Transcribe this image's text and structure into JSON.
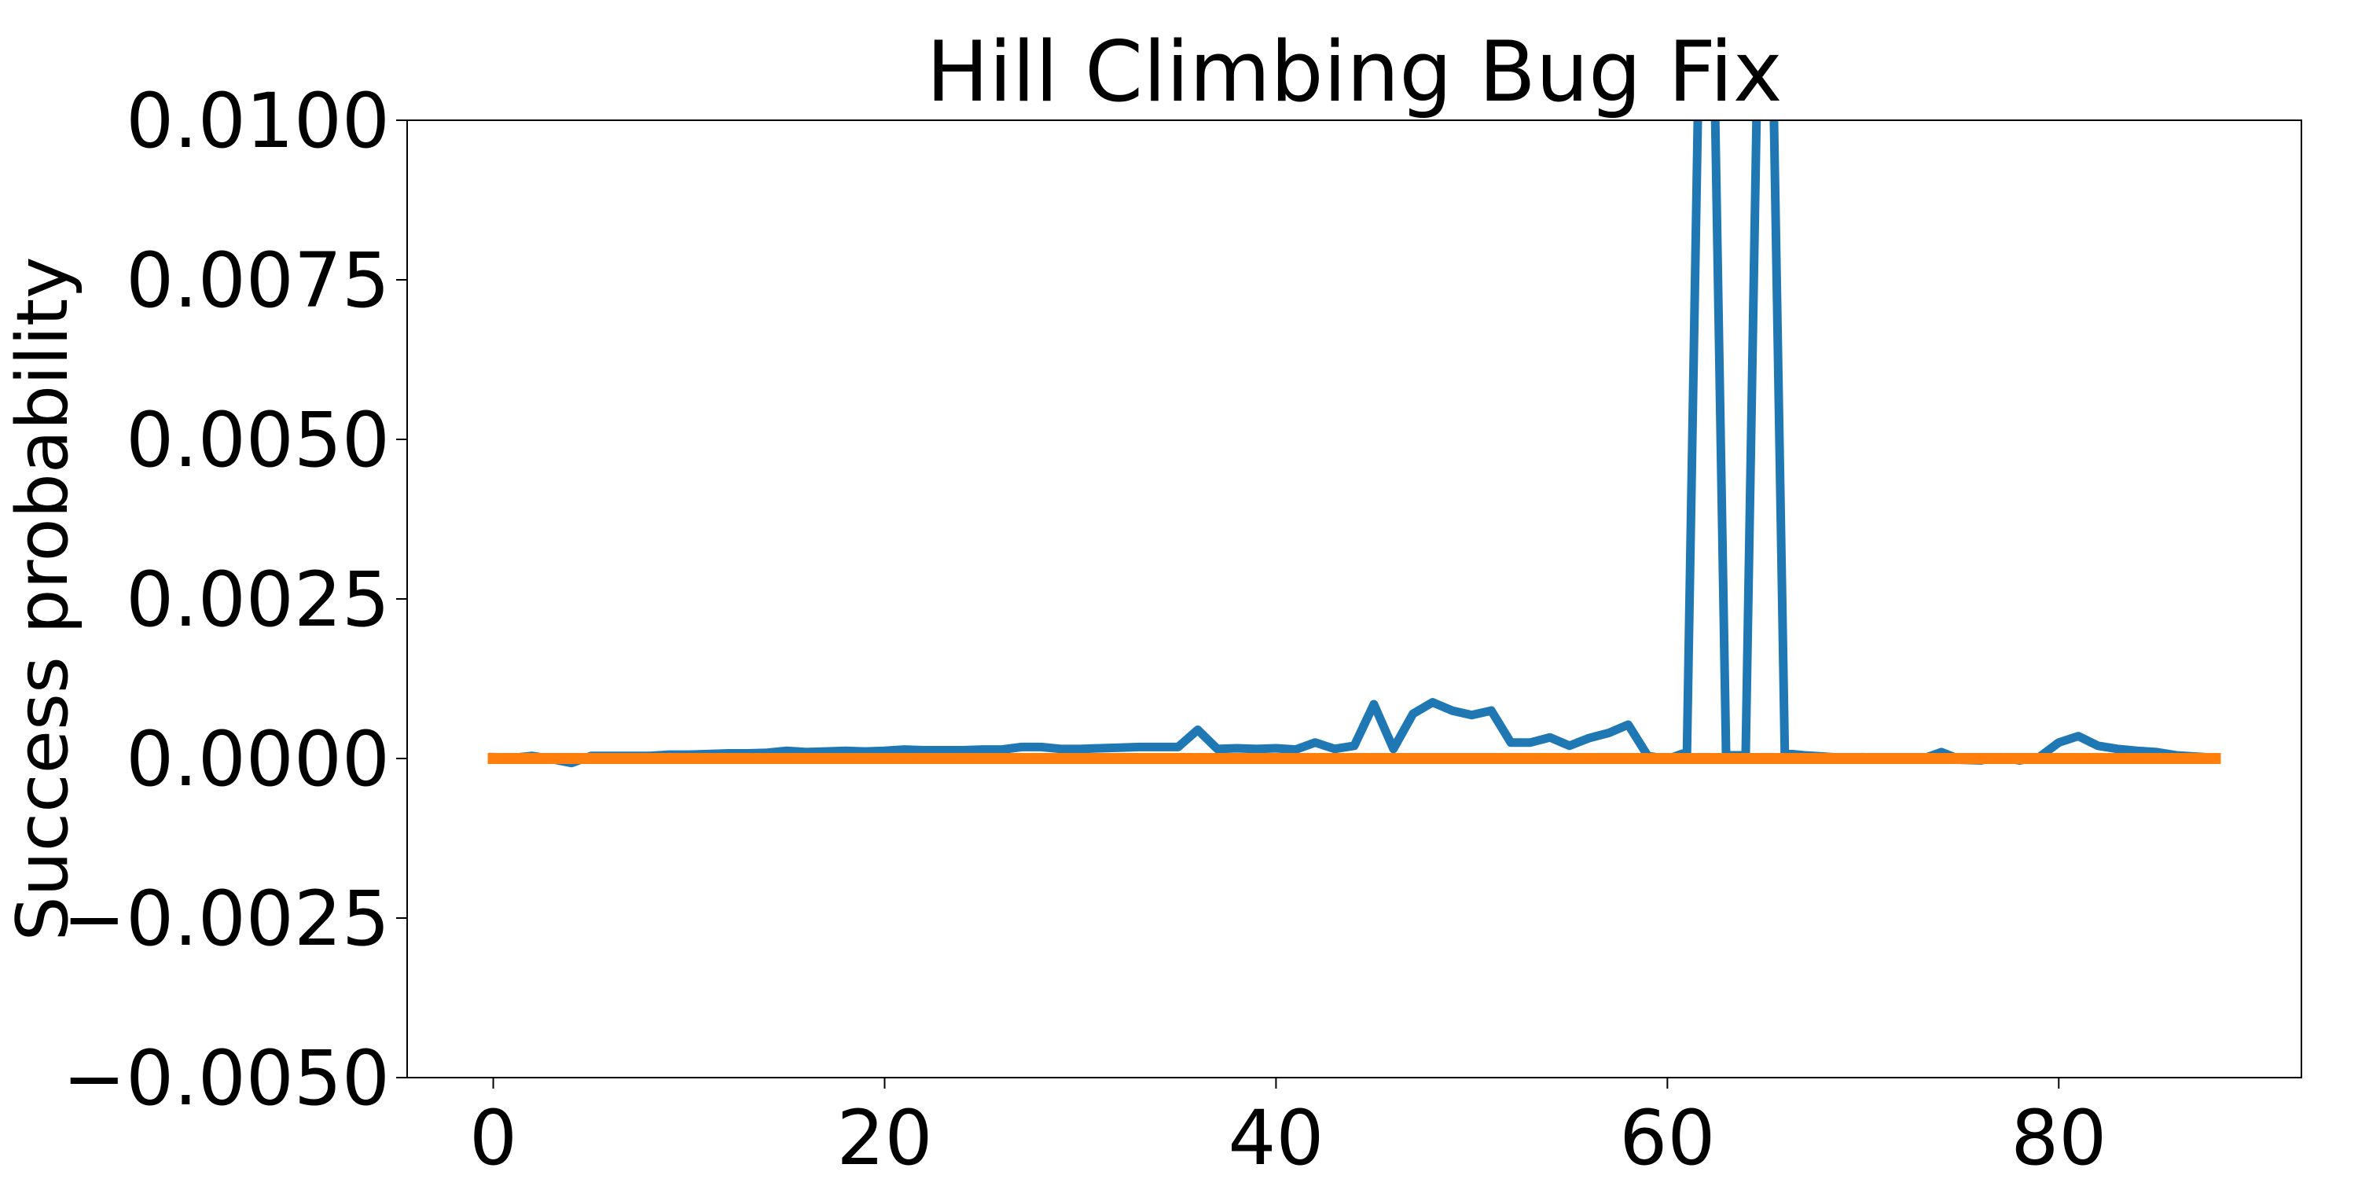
{
  "chart_data": {
    "type": "line",
    "title": "Hill Climbing Bug Fix",
    "xlabel": "",
    "ylabel": "Success probability",
    "xlim": [
      -4.4,
      92.4
    ],
    "ylim": [
      -0.005,
      0.01
    ],
    "xticks": [
      0,
      20,
      40,
      60,
      80
    ],
    "yticks": [
      -0.005,
      -0.0025,
      0.0,
      0.0025,
      0.005,
      0.0075,
      0.01
    ],
    "ytick_labels": [
      "−0.0050",
      "−0.0025",
      "0.0000",
      "0.0025",
      "0.0050",
      "0.0075",
      "0.0100"
    ],
    "grid": false,
    "legend": "none",
    "series": [
      {
        "color": "#1f77b4",
        "x": [
          0,
          1,
          2,
          3,
          4,
          5,
          6,
          7,
          8,
          9,
          10,
          11,
          12,
          13,
          14,
          15,
          16,
          17,
          18,
          19,
          20,
          21,
          22,
          23,
          24,
          25,
          26,
          27,
          28,
          29,
          30,
          31,
          32,
          33,
          34,
          35,
          36,
          37,
          38,
          39,
          40,
          41,
          42,
          43,
          44,
          45,
          46,
          47,
          48,
          49,
          50,
          51,
          52,
          53,
          54,
          55,
          56,
          57,
          58,
          59,
          60,
          61,
          62,
          63,
          64,
          65,
          66,
          67,
          68,
          69,
          70,
          71,
          72,
          73,
          74,
          75,
          76,
          77,
          78,
          79,
          80,
          81,
          82,
          83,
          84,
          85,
          86,
          87,
          88
        ],
        "y": [
          2e-05,
          1e-05,
          4e-05,
          -1e-05,
          -7e-05,
          4e-05,
          4e-05,
          4e-05,
          4e-05,
          6e-05,
          6e-05,
          7e-05,
          8e-05,
          8e-05,
          9e-05,
          0.00012,
          0.0001,
          0.00011,
          0.00012,
          0.00011,
          0.00012,
          0.00014,
          0.00013,
          0.00013,
          0.00013,
          0.00014,
          0.00014,
          0.00018,
          0.00018,
          0.00015,
          0.00015,
          0.00016,
          0.00017,
          0.00018,
          0.00018,
          0.00018,
          0.00045,
          0.00015,
          0.00016,
          0.00015,
          0.00016,
          0.00014,
          0.00025,
          0.00015,
          0.0002,
          0.00085,
          0.00015,
          0.0007,
          0.00088,
          0.00075,
          0.00068,
          0.00075,
          0.00025,
          0.00025,
          0.00033,
          0.0002,
          0.00032,
          0.0004,
          0.00053,
          4e-05,
          -1e-05,
          0.0001,
          0.018,
          5e-05,
          5e-05,
          0.018,
          8e-05,
          5e-05,
          3e-05,
          1e-05,
          2e-05,
          -1e-05,
          -1e-05,
          -1e-05,
          0.0001,
          -2e-05,
          -3e-05,
          2e-05,
          -3e-05,
          2e-05,
          0.00025,
          0.00035,
          0.0002,
          0.00015,
          0.00012,
          0.0001,
          5e-05,
          3e-05,
          1e-05
        ]
      },
      {
        "color": "#ff7f0e",
        "x": [
          0,
          88
        ],
        "y": [
          0.0,
          0.0
        ]
      }
    ]
  }
}
